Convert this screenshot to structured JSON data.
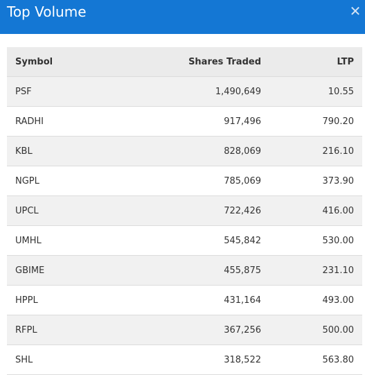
{
  "header": {
    "title": "Top Volume",
    "close_icon": "close-icon"
  },
  "columns": {
    "symbol": "Symbol",
    "shares": "Shares Traded",
    "ltp": "LTP"
  },
  "rows": [
    {
      "symbol": "PSF",
      "shares": "1,490,649",
      "ltp": "10.55"
    },
    {
      "symbol": "RADHI",
      "shares": "917,496",
      "ltp": "790.20"
    },
    {
      "symbol": "KBL",
      "shares": "828,069",
      "ltp": "216.10"
    },
    {
      "symbol": "NGPL",
      "shares": "785,069",
      "ltp": "373.90"
    },
    {
      "symbol": "UPCL",
      "shares": "722,426",
      "ltp": "416.00"
    },
    {
      "symbol": "UMHL",
      "shares": "545,842",
      "ltp": "530.00"
    },
    {
      "symbol": "GBIME",
      "shares": "455,875",
      "ltp": "231.10"
    },
    {
      "symbol": "HPPL",
      "shares": "431,164",
      "ltp": "493.00"
    },
    {
      "symbol": "RFPL",
      "shares": "367,256",
      "ltp": "500.00"
    },
    {
      "symbol": "SHL",
      "shares": "318,522",
      "ltp": "563.80"
    }
  ],
  "colors": {
    "header_bg": "#1477d4",
    "row_alt": "#f1f1f1",
    "table_head": "#ebebeb"
  }
}
